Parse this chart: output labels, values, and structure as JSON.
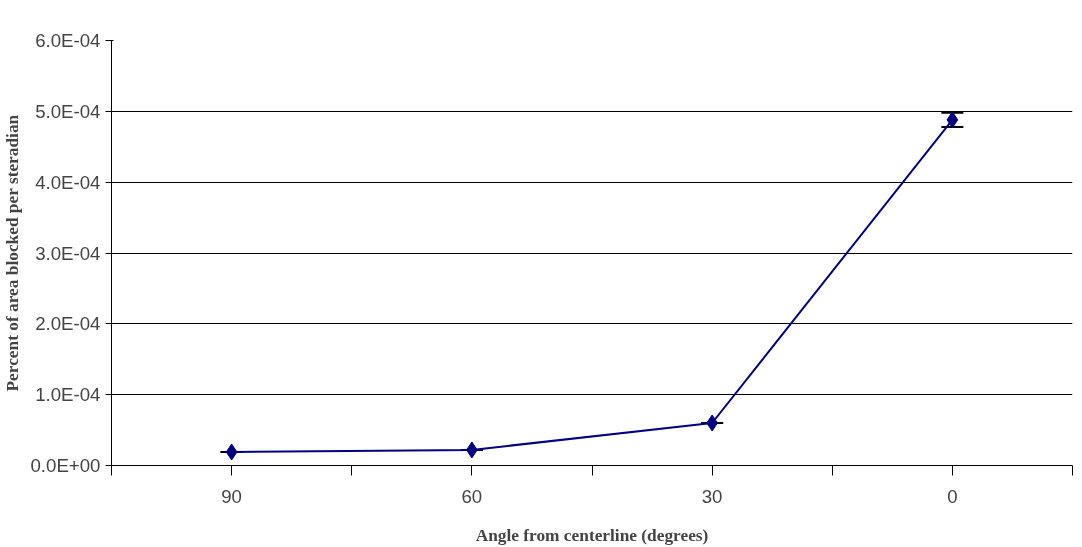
{
  "chart_data": {
    "type": "line",
    "xlabel": "Angle from centerline (degrees)",
    "ylabel": "Percent of area blocked per steradian",
    "categories": [
      "90",
      "60",
      "30",
      "0"
    ],
    "series": [
      {
        "color": "#000080",
        "values": [
          1.9e-05,
          2.2e-05,
          6e-05,
          0.000488
        ],
        "errors": [
          null,
          null,
          null,
          1e-05
        ]
      }
    ],
    "ylim": [
      0,
      0.0006
    ],
    "yticks": [
      {
        "value": 0,
        "label": "0.0E+00"
      },
      {
        "value": 0.0001,
        "label": "1.0E-04"
      },
      {
        "value": 0.0002,
        "label": "2.0E-04"
      },
      {
        "value": 0.0003,
        "label": "3.0E-04"
      },
      {
        "value": 0.0004,
        "label": "4.0E-04"
      },
      {
        "value": 0.0005,
        "label": "5.0E-04"
      },
      {
        "value": 0.0006,
        "label": "6.0E-04"
      }
    ],
    "grid": "y",
    "marker": "diamond",
    "line_style": "solid"
  }
}
